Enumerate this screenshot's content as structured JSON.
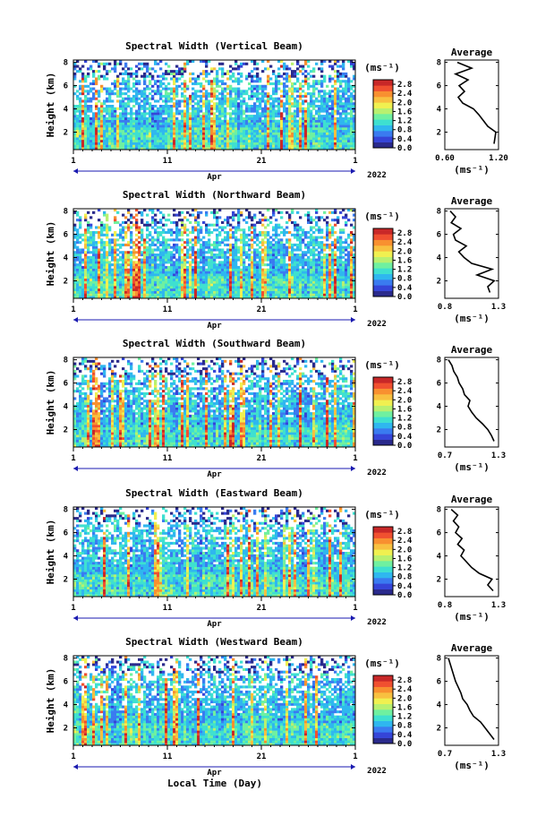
{
  "figure": {
    "xlabel": "Local Time (Day)",
    "month_label": "Apr",
    "year_label": "2022",
    "x_ticks": [
      "1",
      "11",
      "21",
      "1"
    ],
    "ylabel": "Height (km)",
    "y_ticks": [
      "2",
      "4",
      "6",
      "8"
    ],
    "unit_label": "(ms⁻¹)",
    "average_title": "Average"
  },
  "chart_data": [
    {
      "type": "heatmap",
      "title": "Spectral Width (Vertical Beam)",
      "colorbar_ticks": [
        "0.0",
        "0.4",
        "0.8",
        "1.2",
        "1.6",
        "2.0",
        "2.4",
        "2.8"
      ],
      "colorbar_range": [
        0.0,
        3.0
      ],
      "xlim": [
        1,
        31
      ],
      "ylim": [
        0.5,
        8.2
      ],
      "average_profile": {
        "xticks": [
          "0.60",
          "1.20"
        ],
        "xlim": [
          0.6,
          1.2
        ],
        "heights": [
          1.0,
          1.5,
          2.0,
          2.5,
          3.0,
          3.5,
          4.0,
          4.5,
          5.0,
          5.5,
          6.0,
          6.5,
          7.0,
          7.5,
          8.0
        ],
        "values": [
          1.15,
          1.16,
          1.17,
          1.08,
          1.03,
          0.98,
          0.92,
          0.8,
          0.75,
          0.82,
          0.76,
          0.86,
          0.72,
          0.9,
          0.74
        ]
      }
    },
    {
      "type": "heatmap",
      "title": "Spectral Width (Northward Beam)",
      "colorbar_ticks": [
        "0.0",
        "0.4",
        "0.8",
        "1.2",
        "1.6",
        "2.0",
        "2.4",
        "2.8"
      ],
      "colorbar_range": [
        0.0,
        3.0
      ],
      "xlim": [
        1,
        31
      ],
      "ylim": [
        0.5,
        8.2
      ],
      "average_profile": {
        "xticks": [
          "0.8",
          "1.3"
        ],
        "xlim": [
          0.8,
          1.3
        ],
        "heights": [
          1.0,
          1.5,
          2.0,
          2.5,
          3.0,
          3.5,
          4.0,
          4.5,
          5.0,
          5.5,
          6.0,
          6.5,
          7.0,
          7.5,
          8.0
        ],
        "values": [
          1.22,
          1.2,
          1.26,
          1.1,
          1.24,
          1.05,
          0.98,
          0.93,
          1.0,
          0.9,
          0.88,
          0.95,
          0.86,
          0.9,
          0.85
        ]
      }
    },
    {
      "type": "heatmap",
      "title": "Spectral Width (Southward Beam)",
      "colorbar_ticks": [
        "0.0",
        "0.4",
        "0.8",
        "1.2",
        "1.6",
        "2.0",
        "2.4",
        "2.8"
      ],
      "colorbar_range": [
        0.0,
        3.0
      ],
      "xlim": [
        1,
        31
      ],
      "ylim": [
        0.5,
        8.2
      ],
      "average_profile": {
        "xticks": [
          "0.7",
          "1.3"
        ],
        "xlim": [
          0.7,
          1.3
        ],
        "heights": [
          1.0,
          1.5,
          2.0,
          2.5,
          3.0,
          3.5,
          4.0,
          4.5,
          5.0,
          5.5,
          6.0,
          6.5,
          7.0,
          7.5,
          8.0
        ],
        "values": [
          1.25,
          1.22,
          1.18,
          1.12,
          1.05,
          1.0,
          0.96,
          0.98,
          0.92,
          0.9,
          0.86,
          0.84,
          0.8,
          0.78,
          0.74
        ]
      }
    },
    {
      "type": "heatmap",
      "title": "Spectral Width (Eastward Beam)",
      "colorbar_ticks": [
        "0.0",
        "0.4",
        "0.8",
        "1.2",
        "1.6",
        "2.0",
        "2.4",
        "2.8"
      ],
      "colorbar_range": [
        0.0,
        3.0
      ],
      "xlim": [
        1,
        31
      ],
      "ylim": [
        0.5,
        8.2
      ],
      "average_profile": {
        "xticks": [
          "0.8",
          "1.3"
        ],
        "xlim": [
          0.8,
          1.3
        ],
        "heights": [
          1.0,
          1.5,
          2.0,
          2.5,
          3.0,
          3.5,
          4.0,
          4.5,
          5.0,
          5.5,
          6.0,
          6.5,
          7.0,
          7.5,
          8.0
        ],
        "values": [
          1.25,
          1.2,
          1.24,
          1.12,
          1.05,
          1.0,
          0.95,
          0.98,
          0.92,
          0.96,
          0.9,
          0.93,
          0.88,
          0.92,
          0.86
        ]
      }
    },
    {
      "type": "heatmap",
      "title": "Spectral Width (Westward Beam)",
      "colorbar_ticks": [
        "0.0",
        "0.4",
        "0.8",
        "1.2",
        "1.6",
        "2.0",
        "2.4",
        "2.8"
      ],
      "colorbar_range": [
        0.0,
        3.0
      ],
      "xlim": [
        1,
        31
      ],
      "ylim": [
        0.5,
        8.2
      ],
      "average_profile": {
        "xticks": [
          "0.7",
          "1.3"
        ],
        "xlim": [
          0.7,
          1.3
        ],
        "heights": [
          1.0,
          1.5,
          2.0,
          2.5,
          3.0,
          3.5,
          4.0,
          4.5,
          5.0,
          5.5,
          6.0,
          6.5,
          7.0,
          7.5,
          8.0
        ],
        "values": [
          1.25,
          1.2,
          1.15,
          1.1,
          1.02,
          0.98,
          0.95,
          0.9,
          0.88,
          0.85,
          0.82,
          0.8,
          0.78,
          0.76,
          0.74
        ]
      }
    }
  ]
}
